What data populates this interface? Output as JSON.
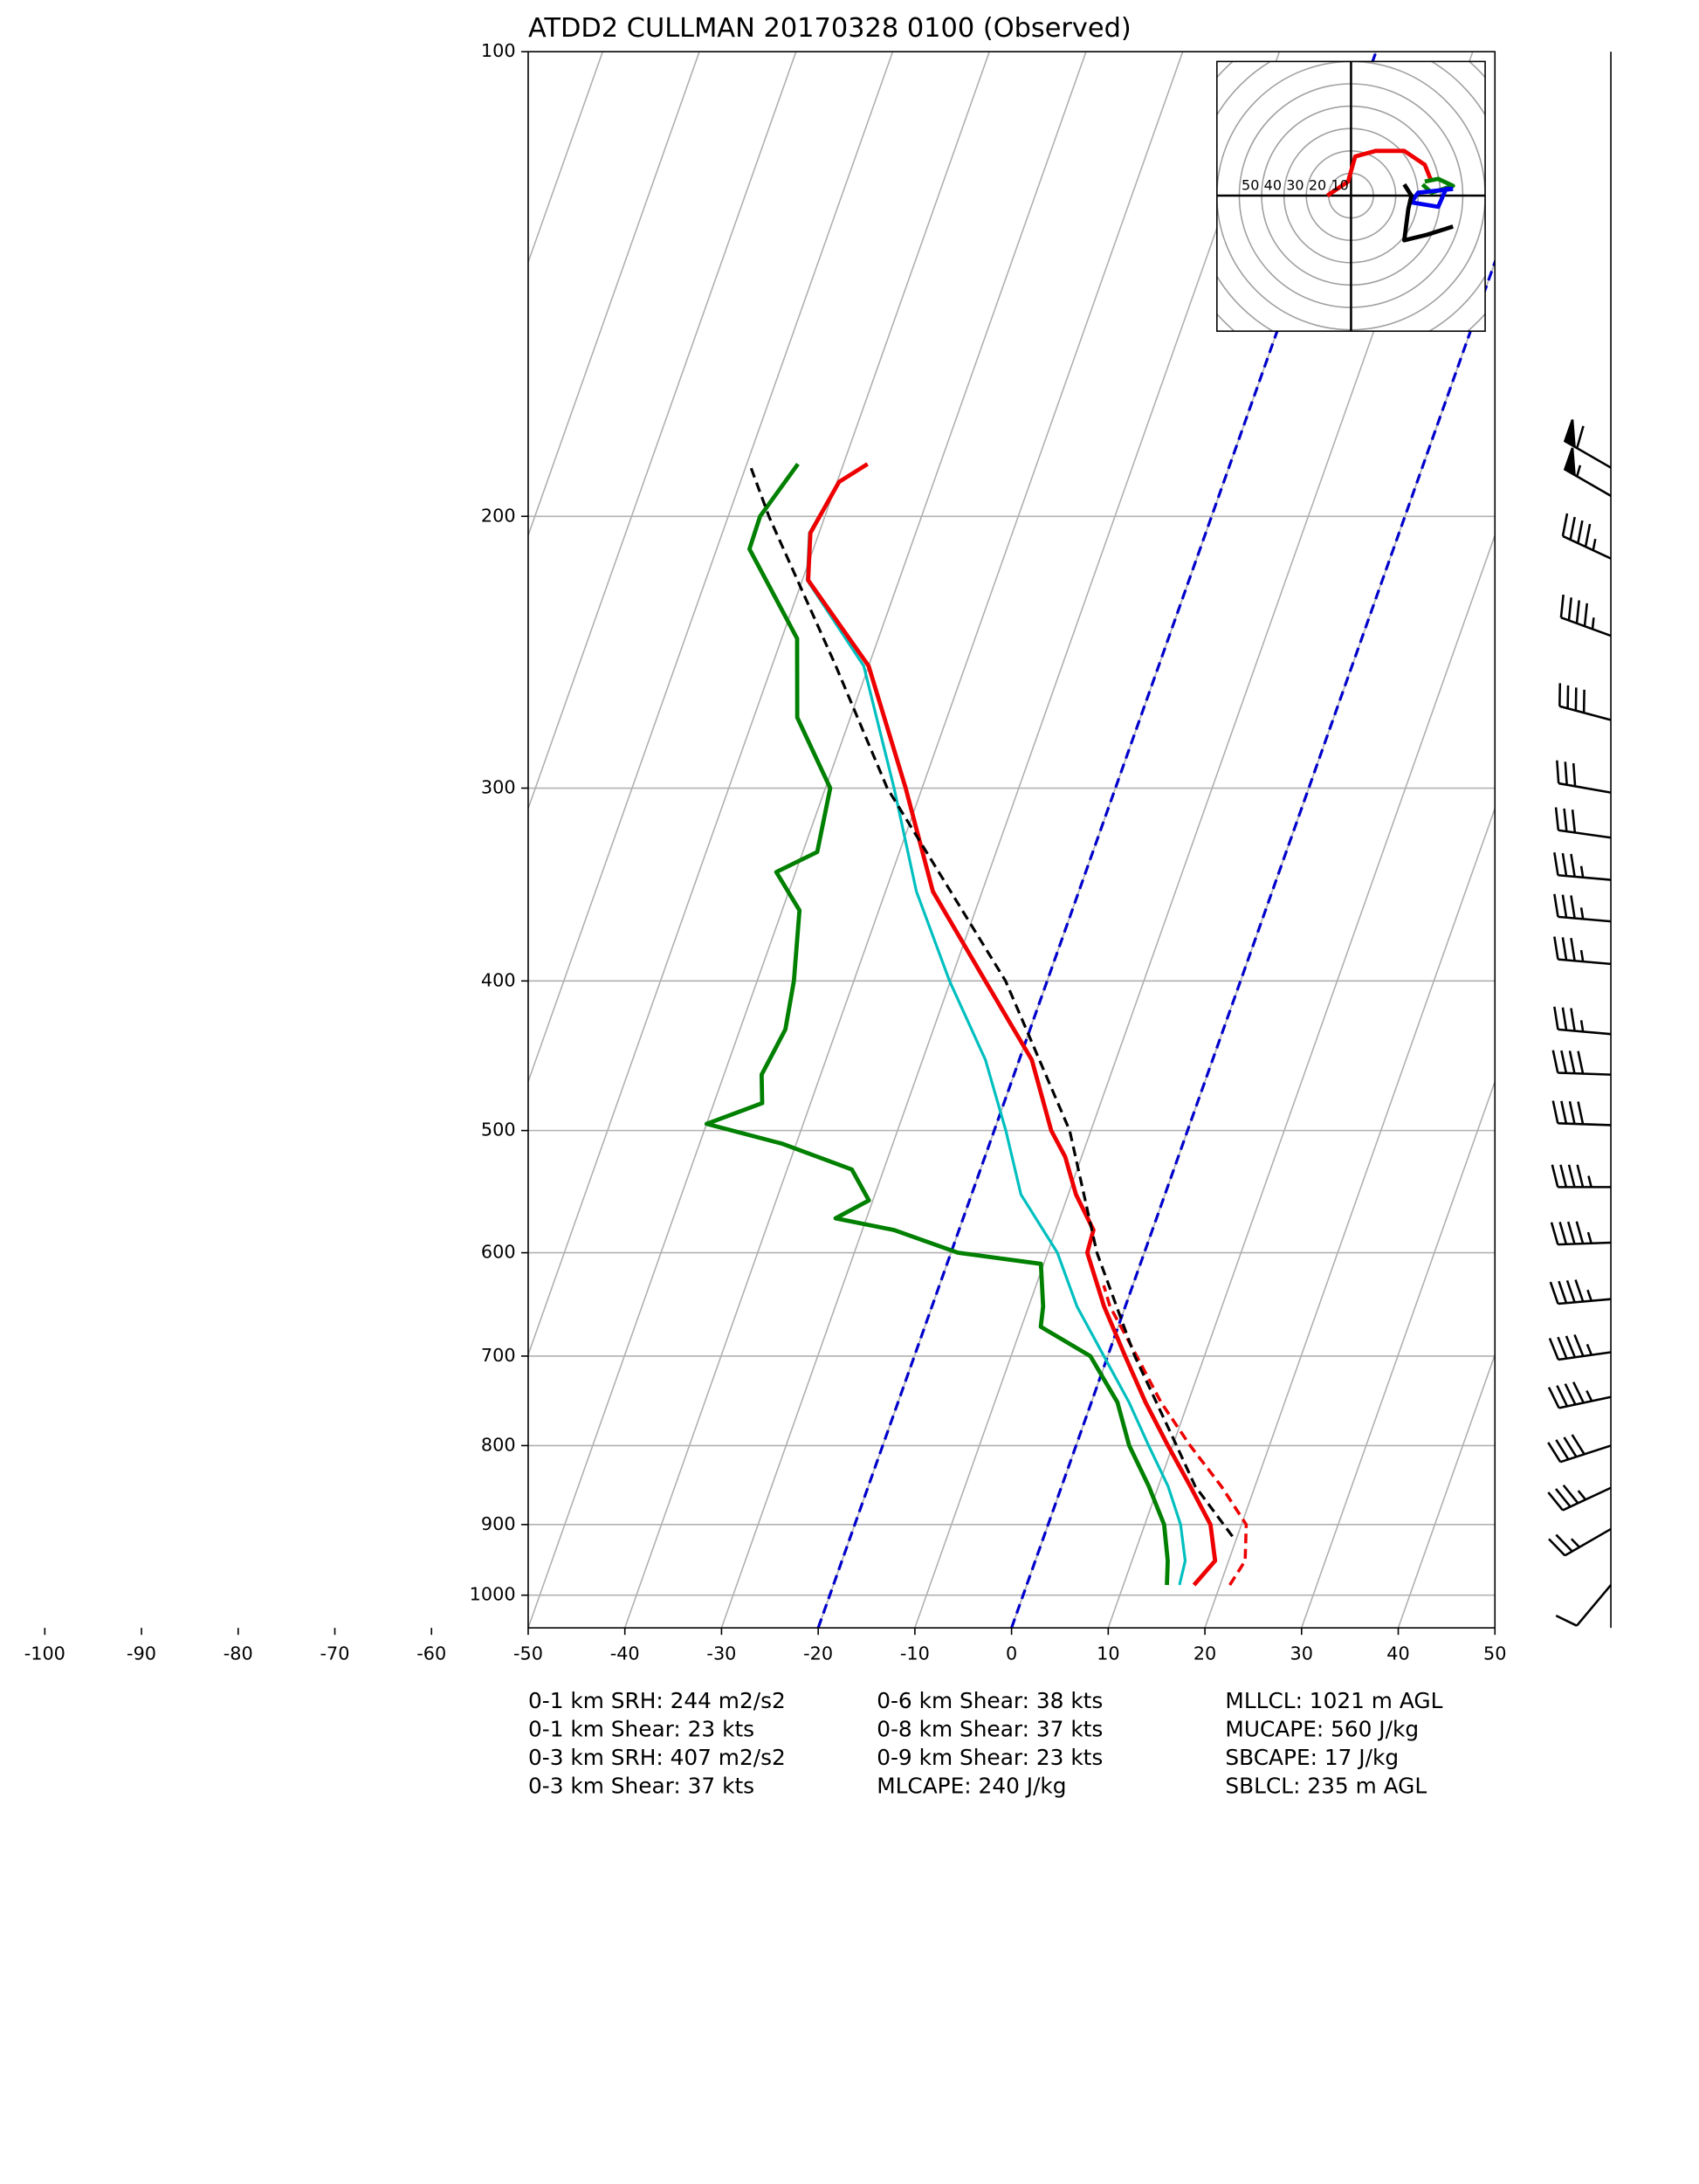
{
  "chart_data": {
    "type": "skewt",
    "title": "ATDD2 CULLMAN 20170328 0100   (Observed)",
    "log_y": true,
    "grid": true,
    "ylim": [
      1050,
      100
    ],
    "yticks": [
      100,
      200,
      300,
      400,
      500,
      600,
      700,
      800,
      900,
      1000
    ],
    "xlim": [
      -50,
      50
    ],
    "xticks": [
      -100,
      -90,
      -80,
      -70,
      -60,
      -50,
      -40,
      -30,
      -20,
      -10,
      0,
      10,
      20,
      30,
      40,
      50
    ],
    "dashed_isotherms": [
      -20,
      0
    ],
    "dashed_isotherm_color": "#0000cc",
    "series": [
      {
        "color": "#00bfbf",
        "dashed": false,
        "width": 2,
        "pressure": [
          985,
          950,
          900,
          850,
          800,
          750,
          700,
          650,
          600,
          550,
          500,
          450,
          400,
          350,
          300,
          250,
          220,
          205,
          190,
          185
        ],
        "values": [
          15.8,
          15.5,
          13.7,
          11,
          7.5,
          3.9,
          -0.4,
          -5,
          -9,
          -14.9,
          -18.8,
          -23.5,
          -30.1,
          -36.8,
          -42.9,
          -50.5,
          -59.5,
          -61,
          -59.8,
          -57.5
        ]
      },
      {
        "color": "#ee0000",
        "dashed": true,
        "width": 2.2,
        "pressure": [
          985,
          950,
          900,
          850,
          800,
          750,
          700,
          650,
          630
        ],
        "values": [
          21,
          21.7,
          20.5,
          16.5,
          11.8,
          7.2,
          3,
          -1.6,
          -3
        ]
      },
      {
        "color": "#ee0000",
        "dashed": false,
        "width": 3,
        "pressure": [
          985,
          950,
          900,
          850,
          800,
          750,
          700,
          650,
          600,
          580,
          550,
          520,
          500,
          450,
          400,
          350,
          300,
          250,
          220,
          205,
          190,
          185
        ],
        "values": [
          17.3,
          18.6,
          16.8,
          13.3,
          9.5,
          5.6,
          1.8,
          -2.2,
          -5.9,
          -6.1,
          -9.2,
          -11.7,
          -14.1,
          -18.7,
          -26.4,
          -35.1,
          -41.7,
          -50,
          -59.4,
          -60.9,
          -59.8,
          -57.5
        ]
      },
      {
        "color": "#008000",
        "dashed": false,
        "width": 3,
        "pressure": [
          985,
          950,
          900,
          850,
          800,
          750,
          700,
          670,
          650,
          610,
          600,
          580,
          570,
          555,
          530,
          510,
          495,
          480,
          460,
          430,
          400,
          360,
          340,
          330,
          300,
          270,
          240,
          210,
          200,
          185
        ],
        "values": [
          14.5,
          13.7,
          12,
          9,
          5.5,
          2.7,
          -1.8,
          -8,
          -8.5,
          -10.3,
          -19.3,
          -26.7,
          -33.2,
          -30.4,
          -33.3,
          -41.4,
          -50,
          -45,
          -46.1,
          -45.3,
          -46.2,
          -48.2,
          -52,
          -48.5,
          -49.5,
          -55.5,
          -58.4,
          -66.6,
          -66.7,
          -64.7
        ]
      },
      {
        "color": "#000000",
        "dashed": true,
        "width": 2,
        "pressure": [
          916,
          850,
          800,
          700,
          600,
          500,
          400,
          300,
          250,
          200,
          185
        ],
        "values": [
          19.5,
          13.8,
          10.4,
          2.8,
          -4.9,
          -12.2,
          -24.3,
          -43.6,
          -53.4,
          -65.8,
          -69.7
        ]
      }
    ],
    "wind": {
      "pressure": [
        186,
        194,
        213,
        239,
        271,
        302,
        323,
        344,
        366,
        390,
        433,
        460,
        496,
        544,
        591,
        643,
        696,
        744,
        800,
        852,
        906,
        985
      ],
      "speed": [
        60,
        55,
        45,
        45,
        40,
        30,
        30,
        35,
        35,
        35,
        35,
        40,
        40,
        45,
        45,
        45,
        45,
        45,
        40,
        35,
        25,
        10
      ],
      "direction": [
        300,
        300,
        295,
        290,
        285,
        280,
        278,
        275,
        275,
        275,
        275,
        272,
        272,
        270,
        268,
        265,
        262,
        258,
        252,
        245,
        240,
        220
      ]
    },
    "hodograph": {
      "xlim": [
        -60,
        60
      ],
      "rings": [
        10,
        20,
        30,
        40,
        50,
        60,
        70,
        80
      ],
      "ring_labels": [
        50,
        40,
        30,
        20,
        10
      ],
      "segments": [
        {
          "color": "#ee0000",
          "u": [
            -10.6,
            -1.3,
            1.9,
            11,
            23.8,
            33,
            36
          ],
          "v": [
            0,
            6.3,
            17.5,
            20,
            20,
            13.8,
            6.3
          ]
        },
        {
          "color": "#008000",
          "u": [
            33,
            39,
            45.6,
            36,
            32
          ],
          "v": [
            6.3,
            7.5,
            4.4,
            1.3,
            5
          ]
        },
        {
          "color": "#0000ee",
          "u": [
            45.6,
            42.5,
            39,
            27,
            30,
            45.6
          ],
          "v": [
            3,
            3,
            -5,
            -3,
            1.3,
            3
          ]
        },
        {
          "color": "#000000",
          "u": [
            45.6,
            34,
            23.8,
            25.6,
            27,
            23.8
          ],
          "v": [
            -13.8,
            -17.5,
            -20,
            -6,
            0,
            5
          ]
        }
      ]
    },
    "annotations": [
      [
        "0-1 km SRH: 244 m2/s2",
        "0-1 km Shear: 23 kts",
        "0-3 km SRH: 407 m2/s2",
        "0-3 km Shear: 37 kts"
      ],
      [
        "0-6 km Shear: 38 kts",
        "0-8 km Shear: 37 kts",
        "0-9 km Shear: 23 kts",
        "MLCAPE: 240 J/kg"
      ],
      [
        "MLLCL: 1021 m AGL",
        "MUCAPE: 560 J/kg",
        "SBCAPE: 17 J/kg",
        "SBLCL: 235 m AGL"
      ]
    ]
  }
}
